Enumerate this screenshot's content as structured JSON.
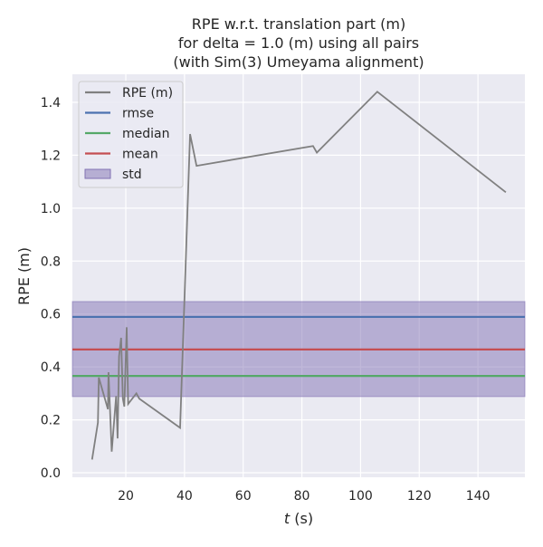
{
  "chart_data": {
    "type": "line",
    "title": [
      "RPE w.r.t. translation part (m)",
      "for delta = 1.0 (m) using all pairs",
      "(with Sim(3) Umeyama alignment)"
    ],
    "xlabel_italic": "t",
    "xlabel_rest": " (s)",
    "ylabel": "RPE (m)",
    "xlim": [
      1.8,
      156
    ],
    "ylim": [
      -0.017,
      1.506
    ],
    "xticks": [
      20,
      40,
      60,
      80,
      100,
      120,
      140
    ],
    "yticks": [
      0.0,
      0.2,
      0.4,
      0.6,
      0.8,
      1.0,
      1.2,
      1.4
    ],
    "ytick_labels": [
      "0.0",
      "0.2",
      "0.4",
      "0.6",
      "0.8",
      "1.0",
      "1.2",
      "1.4"
    ],
    "grid": true,
    "legend_position": "top-left",
    "series": [
      {
        "name": "RPE (m)",
        "color": "#808080",
        "x": [
          8.5,
          10.5,
          10.8,
          13.9,
          14.1,
          15.2,
          16.7,
          17.2,
          17.7,
          18.4,
          19.0,
          19.5,
          20.3,
          20.8,
          23.6,
          24.6,
          38.5,
          41.9,
          44.1,
          83.8,
          85.1,
          105.7,
          149.5
        ],
        "y": [
          0.05,
          0.19,
          0.36,
          0.24,
          0.38,
          0.08,
          0.29,
          0.13,
          0.44,
          0.51,
          0.28,
          0.25,
          0.55,
          0.26,
          0.3,
          0.28,
          0.17,
          1.28,
          1.16,
          1.235,
          1.21,
          1.44,
          1.06
        ]
      }
    ],
    "stats": [
      {
        "name": "rmse",
        "value": 0.589,
        "color": "#4c72b0"
      },
      {
        "name": "median",
        "value": 0.366,
        "color": "#55a868"
      },
      {
        "name": "mean",
        "value": 0.466,
        "color": "#c44e52"
      }
    ],
    "std": {
      "name": "std",
      "low": 0.288,
      "high": 0.647,
      "color": "#8172b3"
    }
  }
}
